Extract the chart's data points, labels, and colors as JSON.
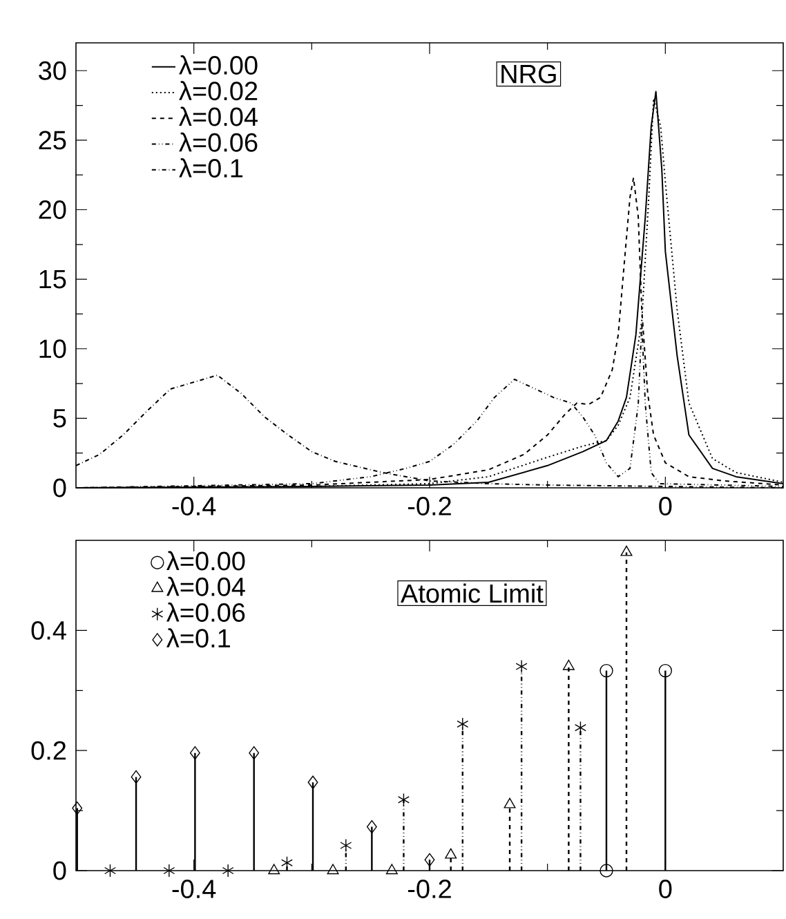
{
  "chart_data": [
    {
      "type": "line",
      "xlim": [
        -0.5,
        0.1
      ],
      "ylim": [
        0,
        32
      ],
      "xticks": [
        -0.4,
        -0.2,
        0
      ],
      "yticks": [
        0,
        5,
        10,
        15,
        20,
        25,
        30
      ],
      "legend": "top left",
      "annotations": [
        "NRG"
      ],
      "series": [
        {
          "name": "λ=0.00",
          "color": "#000000",
          "line_style": "solid",
          "x": [
            -0.5,
            -0.3,
            -0.2,
            -0.15,
            -0.1,
            -0.07,
            -0.05,
            -0.04,
            -0.033,
            -0.025,
            -0.017,
            -0.012,
            -0.008,
            -0.003,
            0.0,
            0.01,
            0.02,
            0.04,
            0.06,
            0.1
          ],
          "values": [
            0.0,
            0.1,
            0.2,
            0.4,
            1.6,
            2.6,
            3.4,
            4.8,
            6.5,
            11,
            19.5,
            26,
            28.5,
            22.9,
            17,
            9.5,
            3.8,
            1.4,
            0.8,
            0.3
          ]
        },
        {
          "name": "λ=0.02",
          "color": "#000000",
          "line_style": "dotted",
          "x": [
            -0.5,
            -0.3,
            -0.2,
            -0.15,
            -0.1,
            -0.07,
            -0.05,
            -0.04,
            -0.03,
            -0.02,
            -0.014,
            -0.01,
            -0.004,
            0.0,
            0.01,
            0.02,
            0.04,
            0.06,
            0.1
          ],
          "values": [
            0.0,
            0.1,
            0.3,
            0.8,
            2.2,
            3.0,
            3.4,
            4.5,
            6.5,
            12,
            21,
            28,
            26,
            22,
            12.8,
            6.1,
            2.1,
            1.1,
            0.4
          ]
        },
        {
          "name": "λ=0.04",
          "color": "#000000",
          "line_style": "dashed",
          "x": [
            -0.5,
            -0.3,
            -0.2,
            -0.15,
            -0.12,
            -0.1,
            -0.085,
            -0.075,
            -0.065,
            -0.055,
            -0.045,
            -0.04,
            -0.035,
            -0.03,
            -0.027,
            -0.023,
            -0.02,
            -0.015,
            -0.01,
            0.0,
            0.02,
            0.05,
            0.1
          ],
          "values": [
            0.0,
            0.2,
            0.6,
            1.3,
            2.4,
            3.8,
            5.3,
            6.1,
            6.0,
            6.5,
            8.5,
            11,
            16,
            20.9,
            22.3,
            19.5,
            12.8,
            6.8,
            3.8,
            1.8,
            0.8,
            0.5,
            0.2
          ]
        },
        {
          "name": "λ=0.06",
          "color": "#000000",
          "line_style": "dashdotdot",
          "x": [
            -0.5,
            -0.3,
            -0.25,
            -0.22,
            -0.2,
            -0.18,
            -0.16,
            -0.145,
            -0.128,
            -0.11,
            -0.095,
            -0.08,
            -0.07,
            -0.06,
            -0.05,
            -0.04,
            -0.03,
            -0.023,
            -0.02,
            -0.017,
            -0.012,
            -0.005,
            0.1
          ],
          "values": [
            0.0,
            0.3,
            0.8,
            1.4,
            1.9,
            3.1,
            4.8,
            6.5,
            7.8,
            7.1,
            6.5,
            6.1,
            5.1,
            3.8,
            1.8,
            0.8,
            1.4,
            6,
            11.8,
            6,
            1.1,
            0.3,
            0.1
          ]
        },
        {
          "name": "λ=0.1",
          "color": "#000000",
          "line_style": "dashdot",
          "x": [
            -0.5,
            -0.48,
            -0.46,
            -0.44,
            -0.42,
            -0.4,
            -0.38,
            -0.36,
            -0.34,
            -0.32,
            -0.3,
            -0.28,
            -0.26,
            -0.24,
            -0.22,
            -0.2,
            -0.15,
            -0.1,
            0.0,
            0.1
          ],
          "values": [
            1.6,
            2.4,
            3.8,
            5.5,
            7.1,
            7.6,
            8.1,
            6.8,
            5.1,
            3.8,
            2.6,
            1.9,
            1.5,
            1.1,
            0.8,
            0.5,
            0.3,
            0.2,
            0.1,
            0.0
          ]
        }
      ]
    },
    {
      "type": "lollipop",
      "xlim": [
        -0.5,
        0.1
      ],
      "ylim": [
        0,
        0.55
      ],
      "xticks": [
        -0.4,
        -0.2,
        0
      ],
      "yticks": [
        0,
        0.2,
        0.4
      ],
      "legend": "top left",
      "annotations": [
        "Atomic Limit"
      ],
      "series": [
        {
          "name": "λ=0.00",
          "color": "#000000",
          "marker": "circle",
          "line_style": "solid",
          "x": [
            -0.05,
            -0.05,
            0.0
          ],
          "values": [
            0.333,
            0.0,
            0.333
          ]
        },
        {
          "name": "λ=0.04",
          "color": "#000000",
          "marker": "triangle",
          "line_style": "dashed",
          "x": [
            -0.332,
            -0.282,
            -0.232,
            -0.182,
            -0.132,
            -0.082,
            -0.033
          ],
          "values": [
            0.0,
            0.0,
            0.0,
            0.026,
            0.11,
            0.34,
            0.53
          ]
        },
        {
          "name": "λ=0.06",
          "color": "#000000",
          "marker": "cross",
          "line_style": "dashdotdot",
          "x": [
            -0.471,
            -0.421,
            -0.371,
            -0.321,
            -0.271,
            -0.222,
            -0.172,
            -0.122,
            -0.072
          ],
          "values": [
            0.0,
            0.0,
            0.0,
            0.013,
            0.042,
            0.118,
            0.244,
            0.34,
            0.238
          ]
        },
        {
          "name": "λ=0.1",
          "color": "#000000",
          "marker": "diamond",
          "line_style": "solid",
          "x": [
            -0.499,
            -0.449,
            -0.399,
            -0.349,
            -0.299,
            -0.249,
            -0.2
          ],
          "values": [
            0.104,
            0.156,
            0.196,
            0.196,
            0.147,
            0.073,
            0.018
          ]
        }
      ]
    }
  ]
}
